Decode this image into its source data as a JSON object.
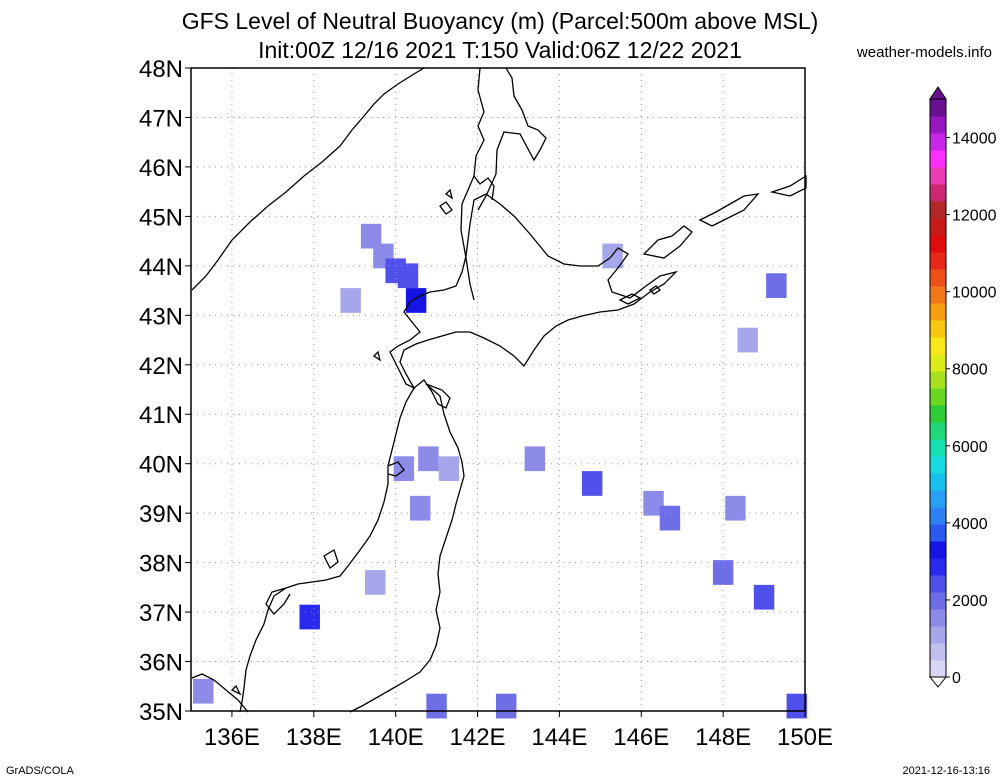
{
  "title_line1": "GFS Level of Neutral Buoyancy (m) (Parcel:500m above MSL)",
  "title_line2": "Init:00Z 12/16 2021 T:150 Valid:06Z 12/22 2021",
  "source": "weather-models.info",
  "footer_left": "GrADS/COLA",
  "footer_right": "2021-12-16-13:16",
  "chart_data": {
    "type": "heatmap",
    "map_region": {
      "lon_range": [
        135,
        150
      ],
      "lat_range": [
        35,
        48
      ]
    },
    "x_ticks": [
      136,
      138,
      140,
      142,
      144,
      146,
      148,
      150
    ],
    "x_tick_labels": [
      "136E",
      "138E",
      "140E",
      "142E",
      "144E",
      "146E",
      "148E",
      "150E"
    ],
    "y_ticks": [
      35,
      36,
      37,
      38,
      39,
      40,
      41,
      42,
      43,
      44,
      45,
      46,
      47,
      48
    ],
    "y_tick_labels": [
      "35N",
      "36N",
      "37N",
      "38N",
      "39N",
      "40N",
      "41N",
      "42N",
      "43N",
      "44N",
      "45N",
      "46N",
      "47N",
      "48N"
    ],
    "grid": true,
    "colorbar": {
      "range": [
        0,
        15000
      ],
      "tick_values": [
        0,
        2000,
        4000,
        6000,
        8000,
        10000,
        12000,
        14000
      ],
      "tick_labels": [
        "0",
        "2000",
        "4000",
        "6000",
        "8000",
        "10000",
        "12000",
        "14000"
      ],
      "colors": [
        "#d8d8f4",
        "#c0c0ee",
        "#a6a6ea",
        "#8c8ce8",
        "#6e6ee6",
        "#5050ea",
        "#2a2aee",
        "#1414e6",
        "#2a5af0",
        "#2e80f4",
        "#2aa0f4",
        "#18c0ee",
        "#18d8e0",
        "#18e0b0",
        "#20d878",
        "#30cc38",
        "#6ad820",
        "#a8e020",
        "#dcec18",
        "#f8e818",
        "#f8c810",
        "#f4a010",
        "#f07818",
        "#ec5018",
        "#e82818",
        "#e00c0c",
        "#c81a1a",
        "#b02828",
        "#cc2870",
        "#e83cb0",
        "#ff30ff",
        "#c828e8",
        "#9818c0",
        "#681090"
      ]
    },
    "cells": [
      {
        "lon": 139.4,
        "lat": 44.6,
        "value": 1400
      },
      {
        "lon": 139.7,
        "lat": 44.2,
        "value": 1700
      },
      {
        "lon": 140.0,
        "lat": 43.9,
        "value": 2300
      },
      {
        "lon": 140.3,
        "lat": 43.8,
        "value": 2500
      },
      {
        "lon": 140.5,
        "lat": 43.3,
        "value": 3200
      },
      {
        "lon": 138.9,
        "lat": 43.3,
        "value": 1200
      },
      {
        "lon": 145.3,
        "lat": 44.2,
        "value": 1300
      },
      {
        "lon": 149.3,
        "lat": 43.6,
        "value": 1800
      },
      {
        "lon": 148.6,
        "lat": 42.5,
        "value": 1200
      },
      {
        "lon": 140.2,
        "lat": 39.9,
        "value": 1400
      },
      {
        "lon": 140.8,
        "lat": 40.1,
        "value": 1500
      },
      {
        "lon": 141.3,
        "lat": 39.9,
        "value": 1300
      },
      {
        "lon": 140.6,
        "lat": 39.1,
        "value": 1600
      },
      {
        "lon": 143.4,
        "lat": 40.1,
        "value": 1500
      },
      {
        "lon": 144.8,
        "lat": 39.6,
        "value": 2300
      },
      {
        "lon": 146.3,
        "lat": 39.2,
        "value": 1700
      },
      {
        "lon": 146.7,
        "lat": 38.9,
        "value": 2000
      },
      {
        "lon": 148.3,
        "lat": 39.1,
        "value": 1600
      },
      {
        "lon": 148.0,
        "lat": 37.8,
        "value": 2200
      },
      {
        "lon": 149.0,
        "lat": 37.3,
        "value": 2300
      },
      {
        "lon": 139.5,
        "lat": 37.6,
        "value": 1300
      },
      {
        "lon": 137.9,
        "lat": 36.9,
        "value": 2700
      },
      {
        "lon": 135.3,
        "lat": 35.4,
        "value": 1400
      },
      {
        "lon": 141.0,
        "lat": 35.1,
        "value": 2200
      },
      {
        "lon": 142.7,
        "lat": 35.1,
        "value": 1800
      },
      {
        "lon": 149.8,
        "lat": 35.1,
        "value": 2400
      }
    ]
  }
}
